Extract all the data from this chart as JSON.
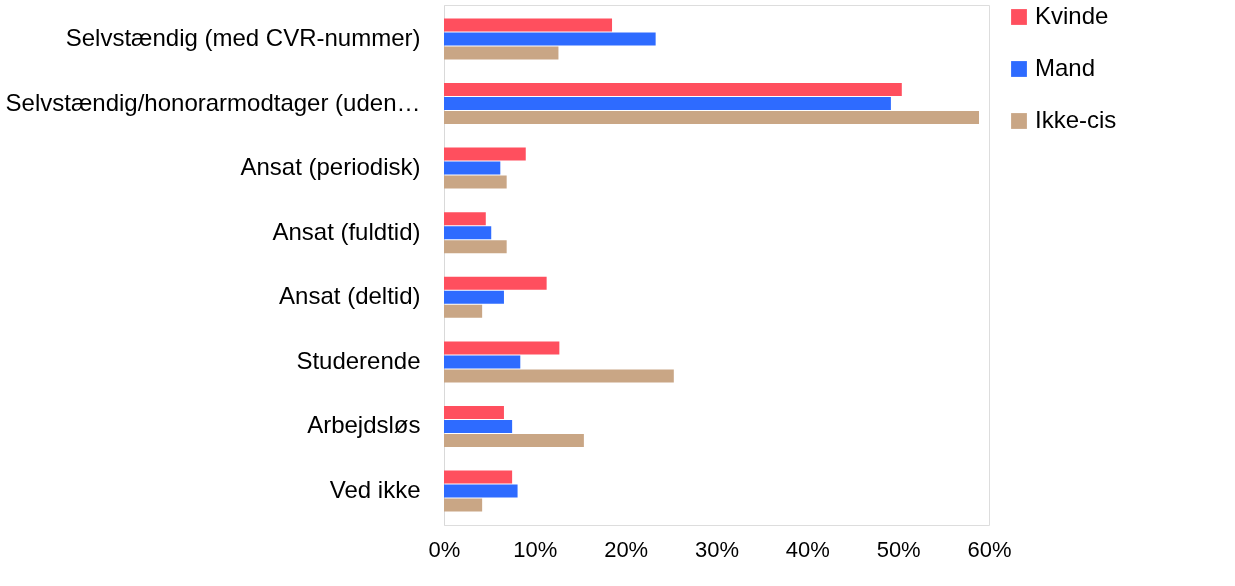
{
  "chart_data": {
    "type": "bar",
    "orientation": "horizontal",
    "categories": [
      "Selvstændig (med CVR-nummer)",
      "Selvstændig/honorarmodtager (uden…",
      "Ansat (periodisk)",
      "Ansat (fuldtid)",
      "Ansat (deltid)",
      "Studerende",
      "Arbejdsløs",
      "Ved ikke"
    ],
    "series": [
      {
        "name": "Kvinde",
        "color": "#ff4f5e",
        "values": [
          18.5,
          50.4,
          9.0,
          4.6,
          11.3,
          12.7,
          6.6,
          7.5
        ]
      },
      {
        "name": "Mand",
        "color": "#2e6bff",
        "values": [
          23.3,
          49.2,
          6.2,
          5.2,
          6.6,
          8.4,
          7.5,
          8.1
        ]
      },
      {
        "name": "Ikke-cis",
        "color": "#c9a685",
        "values": [
          12.6,
          58.9,
          6.9,
          6.9,
          4.2,
          25.3,
          15.4,
          4.2
        ]
      }
    ],
    "xlim": [
      0,
      60
    ],
    "xticks": [
      {
        "value": 0,
        "label": "0%"
      },
      {
        "value": 10,
        "label": "10%"
      },
      {
        "value": 20,
        "label": "20%"
      },
      {
        "value": 30,
        "label": "30%"
      },
      {
        "value": 40,
        "label": "40%"
      },
      {
        "value": 50,
        "label": "50%"
      },
      {
        "value": 60,
        "label": "60%"
      }
    ],
    "grid": false,
    "legend": "right"
  }
}
